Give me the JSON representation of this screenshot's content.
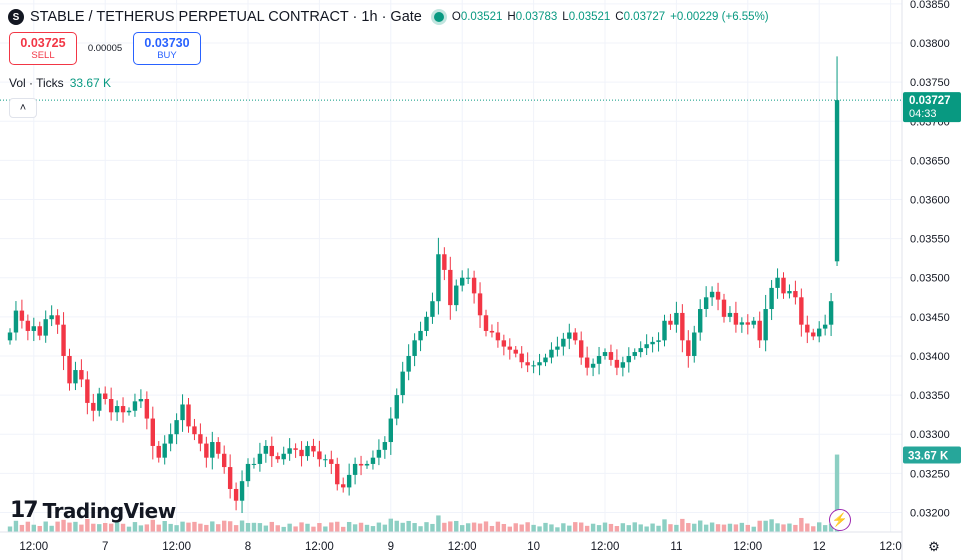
{
  "header": {
    "logo_glyph": "S",
    "title": "STABLE / TETHERUS PERPETUAL CONTRACT · 1h · Gate",
    "open_label": "O",
    "open": "0.03521",
    "high_label": "H",
    "high": "0.03783",
    "low_label": "L",
    "low": "0.03521",
    "close_label": "C",
    "close": "0.03727",
    "change": "+0.00229 (+6.55%)"
  },
  "trade": {
    "sell_price": "0.03725",
    "sell_label": "SELL",
    "spread": "0.00005",
    "buy_price": "0.03730",
    "buy_label": "BUY"
  },
  "volume_legend": {
    "label": "Vol · Ticks",
    "value": "33.67 K"
  },
  "logo": {
    "mark": "17",
    "text": "TradingView"
  },
  "icons": {
    "collapse": "chevron-up-icon",
    "bolt": "lightning-icon",
    "settings": "gear-icon"
  },
  "colors": {
    "up": "#089981",
    "down": "#f23645",
    "vol_up": "#8ccfc3",
    "vol_down": "#f5a3a6",
    "grid": "#f0f3fa",
    "text": "#131722"
  },
  "chart_data": {
    "type": "candlestick",
    "interval": "1h",
    "ylim": [
      0.03175,
      0.03855
    ],
    "y_ticks": [
      "0.03850",
      "0.03800",
      "0.03750",
      "0.03700",
      "0.03650",
      "0.03600",
      "0.03550",
      "0.03500",
      "0.03450",
      "0.03400",
      "0.03350",
      "0.03300",
      "0.03250",
      "0.03200"
    ],
    "x_ticks": [
      {
        "i": 4,
        "label": "12:00"
      },
      {
        "i": 16,
        "label": "7"
      },
      {
        "i": 28,
        "label": "12:00"
      },
      {
        "i": 40,
        "label": "8"
      },
      {
        "i": 52,
        "label": "12:00"
      },
      {
        "i": 64,
        "label": "9"
      },
      {
        "i": 76,
        "label": "12:00"
      },
      {
        "i": 88,
        "label": "10"
      },
      {
        "i": 100,
        "label": "12:00"
      },
      {
        "i": 112,
        "label": "11"
      },
      {
        "i": 124,
        "label": "12:00"
      },
      {
        "i": 136,
        "label": "12"
      },
      {
        "i": 148,
        "label": "12:0"
      }
    ],
    "last_price": "0.03727",
    "countdown": "04:33",
    "last_volume": "33.67 K",
    "ohlc": [],
    "volume": []
  }
}
